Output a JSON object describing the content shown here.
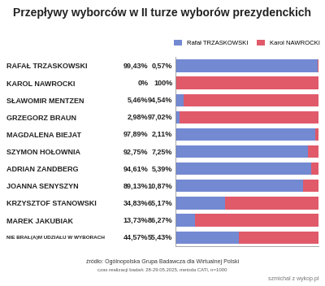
{
  "chart_data": {
    "type": "bar",
    "orientation": "horizontal",
    "stacked": true,
    "title": "Przepływy wyborców w II turze wyborów prezydenckich",
    "categories": [
      "RAFAŁ TRZASKOWSKI",
      "KAROL NAWROCKI",
      "SŁAWOMIR MENTZEN",
      "GRZEGORZ BRAUN",
      "MAGDALENA BIEJAT",
      "SZYMON HOŁOWNIA",
      "ADRIAN ZANDBERG",
      "JOANNA SENYSZYN",
      "KRZYSZTOF STANOWSKI",
      "MAREK JAKUBIAK",
      "NIE BRAŁ(A)M UDZIAŁU W WYBORACH"
    ],
    "series": [
      {
        "name": "Rafał TRZASKOWSKI",
        "color": "#7389d2",
        "values": [
          99.43,
          0,
          5.46,
          2.98,
          97.89,
          92.75,
          94.61,
          89.13,
          34.83,
          13.73,
          44.57
        ],
        "value_labels": [
          "99,43%",
          "0%",
          "5,46%",
          "2,98%",
          "97,89%",
          "92,75%",
          "94,61%",
          "89,13%",
          "34,83%",
          "13,73%",
          "44,57%"
        ]
      },
      {
        "name": "Karol NAWROCKI",
        "color": "#e05a6a",
        "values": [
          0.57,
          100,
          94.54,
          97.02,
          2.11,
          7.25,
          5.39,
          10.87,
          65.17,
          86.27,
          55.43
        ],
        "value_labels": [
          "0,57%",
          "100%",
          "94,54%",
          "97,02%",
          "2,11%",
          "7,25%",
          "5,39%",
          "10,87%",
          "65,17%",
          "86,27%",
          "55,43%"
        ]
      }
    ],
    "xlim": [
      0,
      100
    ],
    "xticks": [],
    "tick_labels": "y",
    "data_labels": true,
    "legend": "upper center",
    "annotations": [
      "źródło: Ogólnopolska Grupa Badawcza dla Wirtualnej Polski",
      "czas realizacji badań: 28-29.05.2025, metoda CATI, n=1000",
      "szmichal z wykop.pl"
    ]
  }
}
